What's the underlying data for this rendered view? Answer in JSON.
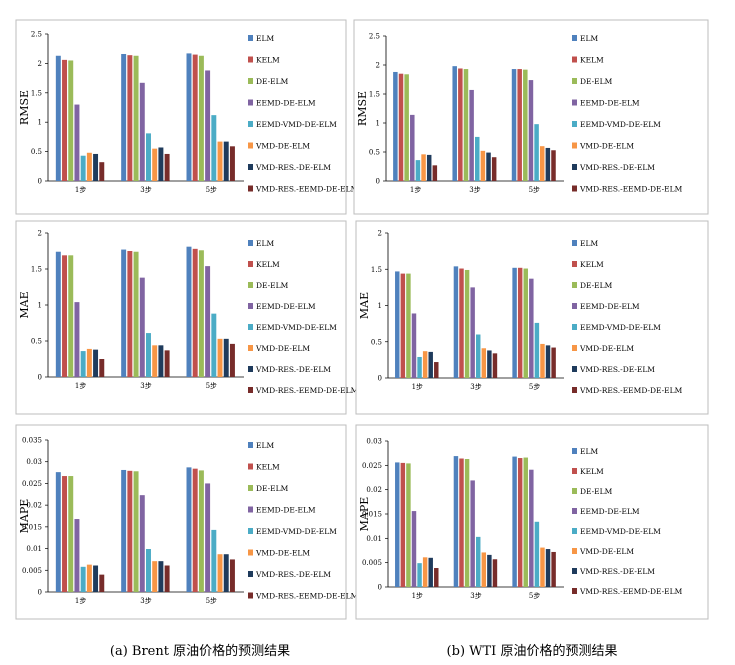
{
  "chart_data": [
    {
      "type": "bar",
      "panel": "brent-rmse",
      "ylabel": "RMSE",
      "y_ticks": [
        "0",
        "0.5",
        "1",
        "1.5",
        "2",
        "2.5"
      ],
      "ylim": [
        0,
        2.5
      ],
      "categories": [
        "1步",
        "3步",
        "5步"
      ],
      "series": [
        {
          "name": "ELM",
          "values": [
            2.13,
            2.16,
            2.17
          ]
        },
        {
          "name": "KELM",
          "values": [
            2.06,
            2.14,
            2.15
          ]
        },
        {
          "name": "DE-ELM",
          "values": [
            2.05,
            2.13,
            2.13
          ]
        },
        {
          "name": "EEMD-DE-ELM",
          "values": [
            1.3,
            1.67,
            1.88
          ]
        },
        {
          "name": "EEMD-VMD-DE-ELM",
          "values": [
            0.43,
            0.81,
            1.12
          ]
        },
        {
          "name": "VMD-DE-ELM",
          "values": [
            0.48,
            0.55,
            0.67
          ]
        },
        {
          "name": "VMD-RES.-DE-ELM",
          "values": [
            0.46,
            0.57,
            0.67
          ]
        },
        {
          "name": "VMD-RES.-EEMD-DE-ELM",
          "values": [
            0.32,
            0.46,
            0.59
          ]
        }
      ]
    },
    {
      "type": "bar",
      "panel": "wti-rmse",
      "ylabel": "RMSE",
      "y_ticks": [
        "0",
        "0.5",
        "1",
        "1.5",
        "2",
        "2.5"
      ],
      "ylim": [
        0,
        2.5
      ],
      "categories": [
        "1步",
        "3步",
        "5步"
      ],
      "series": [
        {
          "name": "ELM",
          "values": [
            1.88,
            1.98,
            1.93
          ]
        },
        {
          "name": "KELM",
          "values": [
            1.85,
            1.94,
            1.93
          ]
        },
        {
          "name": "DE-ELM",
          "values": [
            1.84,
            1.93,
            1.92
          ]
        },
        {
          "name": "EEMD-DE-ELM",
          "values": [
            1.14,
            1.57,
            1.74
          ]
        },
        {
          "name": "EEMD-VMD-DE-ELM",
          "values": [
            0.36,
            0.76,
            0.98
          ]
        },
        {
          "name": "VMD-DE-ELM",
          "values": [
            0.46,
            0.52,
            0.6
          ]
        },
        {
          "name": "VMD-RES.-DE-ELM",
          "values": [
            0.45,
            0.49,
            0.57
          ]
        },
        {
          "name": "VMD-RES.-EEMD-DE-ELM",
          "values": [
            0.27,
            0.41,
            0.53
          ]
        }
      ]
    },
    {
      "type": "bar",
      "panel": "brent-mae",
      "ylabel": "MAE",
      "y_ticks": [
        "0",
        "0.5",
        "1",
        "1.5",
        "2"
      ],
      "ylim": [
        0,
        2
      ],
      "categories": [
        "1步",
        "3步",
        "5步"
      ],
      "series": [
        {
          "name": "ELM",
          "values": [
            1.74,
            1.77,
            1.81
          ]
        },
        {
          "name": "KELM",
          "values": [
            1.69,
            1.75,
            1.78
          ]
        },
        {
          "name": "DE-ELM",
          "values": [
            1.69,
            1.74,
            1.76
          ]
        },
        {
          "name": "EEMD-DE-ELM",
          "values": [
            1.04,
            1.38,
            1.54
          ]
        },
        {
          "name": "EEMD-VMD-DE-ELM",
          "values": [
            0.36,
            0.61,
            0.88
          ]
        },
        {
          "name": "VMD-DE-ELM",
          "values": [
            0.39,
            0.44,
            0.53
          ]
        },
        {
          "name": "VMD-RES.-DE-ELM",
          "values": [
            0.38,
            0.44,
            0.53
          ]
        },
        {
          "name": "VMD-RES.-EEMD-DE-ELM",
          "values": [
            0.25,
            0.37,
            0.46
          ]
        }
      ]
    },
    {
      "type": "bar",
      "panel": "wti-mae",
      "ylabel": "MAE",
      "y_ticks": [
        "0",
        "0.5",
        "1",
        "1.5",
        "2"
      ],
      "ylim": [
        0,
        2
      ],
      "categories": [
        "1步",
        "3步",
        "5步"
      ],
      "series": [
        {
          "name": "ELM",
          "values": [
            1.47,
            1.54,
            1.52
          ]
        },
        {
          "name": "KELM",
          "values": [
            1.44,
            1.51,
            1.52
          ]
        },
        {
          "name": "DE-ELM",
          "values": [
            1.44,
            1.49,
            1.51
          ]
        },
        {
          "name": "EEMD-DE-ELM",
          "values": [
            0.89,
            1.25,
            1.37
          ]
        },
        {
          "name": "EEMD-VMD-DE-ELM",
          "values": [
            0.29,
            0.6,
            0.76
          ]
        },
        {
          "name": "VMD-DE-ELM",
          "values": [
            0.37,
            0.41,
            0.47
          ]
        },
        {
          "name": "VMD-RES.-DE-ELM",
          "values": [
            0.36,
            0.38,
            0.45
          ]
        },
        {
          "name": "VMD-RES.-EEMD-DE-ELM",
          "values": [
            0.22,
            0.34,
            0.42
          ]
        }
      ]
    },
    {
      "type": "bar",
      "panel": "brent-mape",
      "ylabel": "MAPE",
      "y_ticks": [
        "0",
        "0.005",
        "0.01",
        "0.015",
        "0.02",
        "0.025",
        "0.03",
        "0.035"
      ],
      "ylim": [
        0,
        0.035
      ],
      "categories": [
        "1步",
        "3步",
        "5步"
      ],
      "series": [
        {
          "name": "ELM",
          "values": [
            0.0276,
            0.0281,
            0.0287
          ]
        },
        {
          "name": "KELM",
          "values": [
            0.0267,
            0.0279,
            0.0284
          ]
        },
        {
          "name": "DE-ELM",
          "values": [
            0.0267,
            0.0278,
            0.028
          ]
        },
        {
          "name": "EEMD-DE-ELM",
          "values": [
            0.0168,
            0.0223,
            0.025
          ]
        },
        {
          "name": "EEMD-VMD-DE-ELM",
          "values": [
            0.0058,
            0.0099,
            0.0143
          ]
        },
        {
          "name": "VMD-DE-ELM",
          "values": [
            0.0063,
            0.0071,
            0.0087
          ]
        },
        {
          "name": "VMD-RES.-DE-ELM",
          "values": [
            0.0061,
            0.0071,
            0.0087
          ]
        },
        {
          "name": "VMD-RES.-EEMD-DE-ELM",
          "values": [
            0.004,
            0.0061,
            0.0075
          ]
        }
      ]
    },
    {
      "type": "bar",
      "panel": "wti-mape",
      "ylabel": "MAPE",
      "y_ticks": [
        "0",
        "0.005",
        "0.01",
        "0.015",
        "0.02",
        "0.025",
        "0.03"
      ],
      "ylim": [
        0,
        0.03
      ],
      "categories": [
        "1步",
        "3步",
        "5步"
      ],
      "series": [
        {
          "name": "ELM",
          "values": [
            0.0256,
            0.0269,
            0.0268
          ]
        },
        {
          "name": "KELM",
          "values": [
            0.0255,
            0.0264,
            0.0265
          ]
        },
        {
          "name": "DE-ELM",
          "values": [
            0.0254,
            0.0263,
            0.0266
          ]
        },
        {
          "name": "EEMD-DE-ELM",
          "values": [
            0.0156,
            0.0219,
            0.0241
          ]
        },
        {
          "name": "EEMD-VMD-DE-ELM",
          "values": [
            0.0049,
            0.0103,
            0.0134
          ]
        },
        {
          "name": "VMD-DE-ELM",
          "values": [
            0.0061,
            0.0071,
            0.0081
          ]
        },
        {
          "name": "VMD-RES.-DE-ELM",
          "values": [
            0.006,
            0.0066,
            0.0078
          ]
        },
        {
          "name": "VMD-RES.-EEMD-DE-ELM",
          "values": [
            0.0039,
            0.0057,
            0.0072
          ]
        }
      ]
    }
  ],
  "series_colors": [
    "#4f81bd",
    "#c0504d",
    "#9bbb59",
    "#8064a2",
    "#4bacc6",
    "#f79646",
    "#1f3b5c",
    "#772c2a"
  ],
  "captions": {
    "left": "(a) Brent 原油价格的预测结果",
    "right": "(b) WTI 原油价格的预测结果"
  }
}
